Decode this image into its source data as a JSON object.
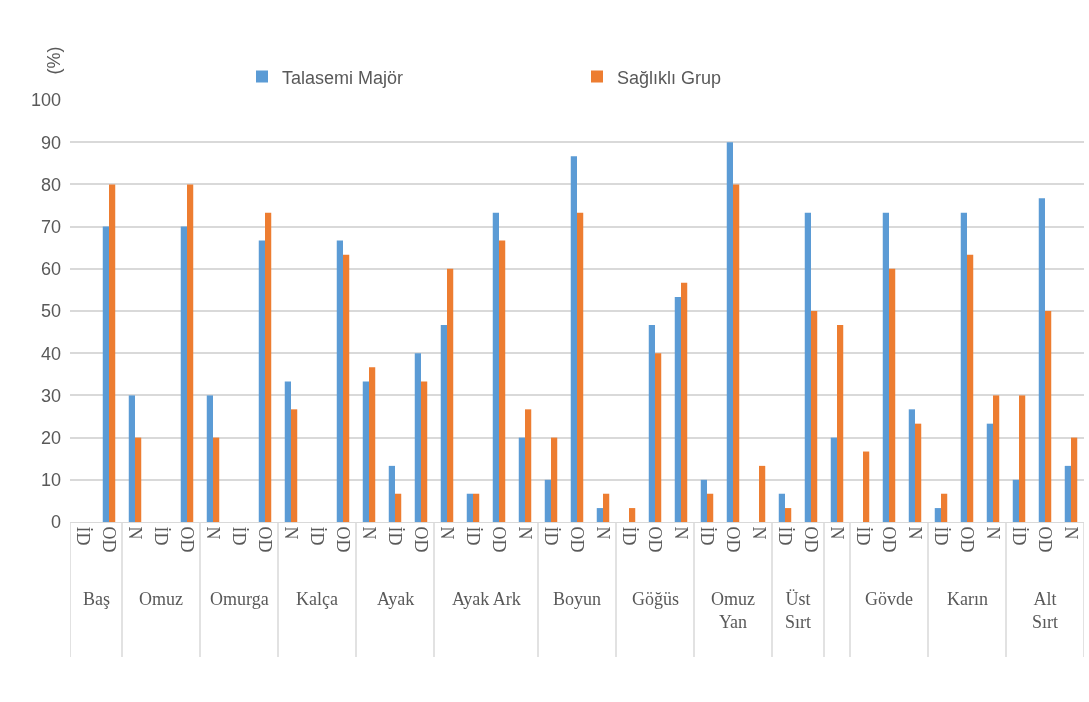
{
  "chart_data": {
    "type": "bar",
    "ylabel": "(%)",
    "categories": [
      "İD",
      "OD",
      "N",
      "İD",
      "OD",
      "N",
      "İD",
      "OD",
      "N",
      "İD",
      "OD",
      "N",
      "İD",
      "OD",
      "N",
      "İD",
      "OD",
      "N",
      "İD",
      "OD",
      "N",
      "İD",
      "OD",
      "N",
      "İD",
      "OD",
      "N",
      "İD",
      "OD",
      "N",
      "İD",
      "OD",
      "N",
      "İD",
      "OD",
      "N",
      "İD",
      "OD",
      "N"
    ],
    "series": [
      {
        "name": "Talasemi Majör",
        "color": "#5b9bd5",
        "values": [
          0,
          70,
          30,
          0,
          70,
          30,
          0,
          66.7,
          33.3,
          0,
          66.7,
          33.3,
          13.3,
          40,
          46.7,
          6.7,
          73.3,
          20,
          10,
          86.7,
          3.3,
          0,
          46.7,
          53.3,
          10,
          90,
          0,
          6.7,
          73.3,
          20,
          0,
          73.3,
          26.7,
          3.3,
          73.3,
          23.3,
          10,
          76.7,
          13.3
        ]
      },
      {
        "name": "Sağlıklı Grup",
        "color": "#ed7d31",
        "values": [
          0,
          80,
          20,
          0,
          80,
          20,
          0,
          73.3,
          26.7,
          0,
          63.3,
          36.7,
          6.7,
          33.3,
          60,
          6.7,
          66.7,
          26.7,
          20,
          73.3,
          6.7,
          3.3,
          40,
          56.7,
          6.7,
          80,
          13.3,
          3.3,
          50,
          46.7,
          16.7,
          60,
          23.3,
          6.7,
          63.3,
          30,
          30,
          50,
          20
        ]
      }
    ],
    "annotations": [
      "Baş",
      "Omuz",
      "Omurga",
      "Kalça",
      "Ayak",
      "Ayak Ark",
      "Boyun",
      "Göğüs",
      "Omuz Yan",
      "Üst Sırt",
      "Gövde",
      "Karın",
      "Alt Sırt"
    ],
    "ylim": [
      0,
      100
    ],
    "yticks": [
      0,
      10,
      20,
      30,
      40,
      50,
      60,
      70,
      80,
      90,
      100
    ],
    "grid": "y",
    "legend": "top"
  }
}
